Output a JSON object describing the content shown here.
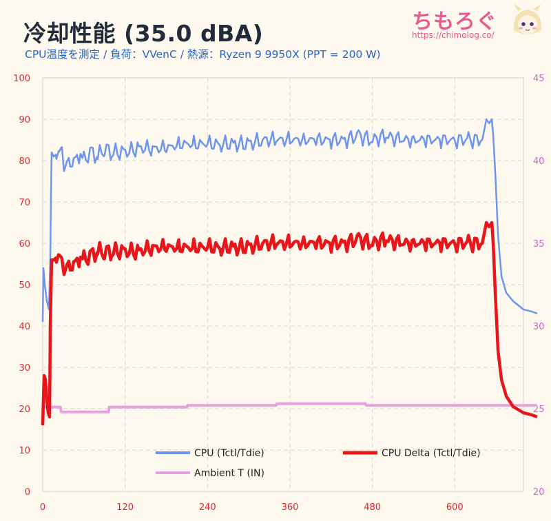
{
  "header": {
    "title": "冷却性能 (35.0 dBA)",
    "subtitle": "CPU温度を測定 / 負荷：VVenC / 熱源：Ryzen 9 9950X (PPT = 200 W)"
  },
  "logo": {
    "text": "ちもろぐ",
    "url": "https://chimolog.co/"
  },
  "chart_data": {
    "type": "line",
    "xlim": [
      0,
      700
    ],
    "x_ticks": [
      "0",
      "120",
      "240",
      "360",
      "480",
      "600"
    ],
    "ylim_left": [
      0,
      100
    ],
    "y_ticks_left": [
      "0",
      "10",
      "20",
      "30",
      "40",
      "50",
      "60",
      "70",
      "80",
      "90",
      "100"
    ],
    "ylim_right": [
      20,
      45
    ],
    "y_ticks_right": [
      "20",
      "25",
      "30",
      "35",
      "40",
      "45"
    ],
    "grid": true,
    "legend_position": "bottom",
    "series": [
      {
        "name": "CPU (Tctl/Tdie)",
        "axis": "left",
        "color": "#6e95ee",
        "points": [
          [
            0,
            41
          ],
          [
            1,
            54
          ],
          [
            3,
            50
          ],
          [
            6,
            46
          ],
          [
            9,
            44
          ],
          [
            11,
            56
          ],
          [
            12,
            72
          ],
          [
            13,
            82
          ],
          [
            16,
            81
          ],
          [
            20,
            82
          ],
          [
            24,
            81
          ],
          [
            28,
            82
          ],
          [
            31,
            79
          ],
          [
            35,
            80
          ],
          [
            40,
            79
          ],
          [
            45,
            81
          ],
          [
            50,
            80
          ],
          [
            55,
            82
          ],
          [
            60,
            80
          ],
          [
            70,
            82
          ],
          [
            80,
            81
          ],
          [
            90,
            83
          ],
          [
            100,
            82
          ],
          [
            120,
            82
          ],
          [
            140,
            83
          ],
          [
            160,
            83
          ],
          [
            180,
            83
          ],
          [
            200,
            84
          ],
          [
            220,
            84
          ],
          [
            240,
            84
          ],
          [
            260,
            84
          ],
          [
            280,
            84
          ],
          [
            300,
            84
          ],
          [
            320,
            85
          ],
          [
            340,
            85
          ],
          [
            360,
            85
          ],
          [
            380,
            85
          ],
          [
            400,
            85
          ],
          [
            420,
            85
          ],
          [
            440,
            85
          ],
          [
            460,
            86
          ],
          [
            480,
            85
          ],
          [
            500,
            86
          ],
          [
            520,
            85
          ],
          [
            540,
            85
          ],
          [
            560,
            85
          ],
          [
            580,
            85
          ],
          [
            600,
            85
          ],
          [
            620,
            85
          ],
          [
            640,
            85
          ],
          [
            646,
            90
          ],
          [
            650,
            89
          ],
          [
            654,
            90
          ],
          [
            656,
            86
          ],
          [
            659,
            77
          ],
          [
            663,
            62
          ],
          [
            668,
            52
          ],
          [
            675,
            48
          ],
          [
            685,
            46
          ],
          [
            700,
            44
          ],
          [
            712,
            43.5
          ],
          [
            720,
            43
          ]
        ]
      },
      {
        "name": "CPU Delta (Tctl/Tdie)",
        "axis": "left",
        "color": "#e8151b",
        "points": [
          [
            0,
            16
          ],
          [
            2,
            28
          ],
          [
            4,
            27
          ],
          [
            6,
            22
          ],
          [
            8,
            19
          ],
          [
            10,
            18
          ],
          [
            11,
            40
          ],
          [
            13,
            56
          ],
          [
            16,
            56
          ],
          [
            20,
            57
          ],
          [
            24,
            56
          ],
          [
            28,
            55
          ],
          [
            31,
            54
          ],
          [
            35,
            55
          ],
          [
            40,
            54
          ],
          [
            45,
            56
          ],
          [
            50,
            55
          ],
          [
            55,
            57
          ],
          [
            60,
            56
          ],
          [
            70,
            57
          ],
          [
            80,
            58
          ],
          [
            90,
            58
          ],
          [
            100,
            58
          ],
          [
            120,
            58
          ],
          [
            140,
            58
          ],
          [
            160,
            59
          ],
          [
            180,
            59
          ],
          [
            200,
            59
          ],
          [
            220,
            59
          ],
          [
            240,
            59
          ],
          [
            260,
            59
          ],
          [
            280,
            59
          ],
          [
            300,
            59
          ],
          [
            320,
            60
          ],
          [
            340,
            60
          ],
          [
            360,
            60
          ],
          [
            380,
            60
          ],
          [
            400,
            60
          ],
          [
            420,
            60
          ],
          [
            440,
            60
          ],
          [
            460,
            61
          ],
          [
            480,
            60
          ],
          [
            500,
            61
          ],
          [
            520,
            60
          ],
          [
            540,
            60
          ],
          [
            560,
            60
          ],
          [
            580,
            60
          ],
          [
            600,
            60
          ],
          [
            620,
            60
          ],
          [
            640,
            60
          ],
          [
            646,
            65
          ],
          [
            650,
            64
          ],
          [
            654,
            65
          ],
          [
            656,
            60
          ],
          [
            659,
            48
          ],
          [
            663,
            34
          ],
          [
            668,
            27
          ],
          [
            675,
            23
          ],
          [
            685,
            20.5
          ],
          [
            700,
            19
          ],
          [
            712,
            18.5
          ],
          [
            720,
            18
          ]
        ]
      },
      {
        "name": "Ambient T (IN)",
        "axis": "right",
        "color": "#e6a2de",
        "points": [
          [
            0,
            25.1
          ],
          [
            26,
            25.1
          ],
          [
            27,
            24.8
          ],
          [
            96,
            24.8
          ],
          [
            97,
            25.1
          ],
          [
            210,
            25.1
          ],
          [
            211,
            25.2
          ],
          [
            340,
            25.2
          ],
          [
            341,
            25.3
          ],
          [
            470,
            25.3
          ],
          [
            471,
            25.2
          ],
          [
            720,
            25.2
          ]
        ]
      }
    ]
  }
}
